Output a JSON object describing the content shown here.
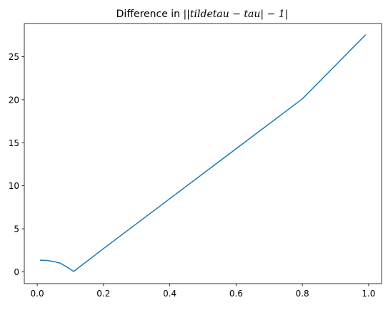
{
  "chart_data": {
    "type": "line",
    "title": {
      "prefix": "Difference in ",
      "math": "||tildetau − tau| − 1|"
    },
    "xlabel": "",
    "ylabel": "",
    "xlim": [
      -0.039,
      1.039
    ],
    "ylim": [
      -1.37,
      28.85
    ],
    "xticks": [
      0.0,
      0.2,
      0.4,
      0.6,
      0.8,
      1.0
    ],
    "xtick_labels": [
      "0.0",
      "0.2",
      "0.4",
      "0.6",
      "0.8",
      "1.0"
    ],
    "yticks": [
      0,
      5,
      10,
      15,
      20,
      25
    ],
    "ytick_labels": [
      "0",
      "5",
      "10",
      "15",
      "20",
      "25"
    ],
    "grid": false,
    "legend": "none",
    "series": [
      {
        "color": "#1f77b4",
        "x": [
          0.01,
          0.03,
          0.05,
          0.07,
          0.09,
          0.11,
          0.2,
          0.4,
          0.6,
          0.8,
          0.99
        ],
        "y": [
          1.35,
          1.32,
          1.2,
          1.0,
          0.55,
          0.05,
          2.7,
          8.5,
          14.3,
          20.1,
          27.5
        ]
      }
    ]
  }
}
